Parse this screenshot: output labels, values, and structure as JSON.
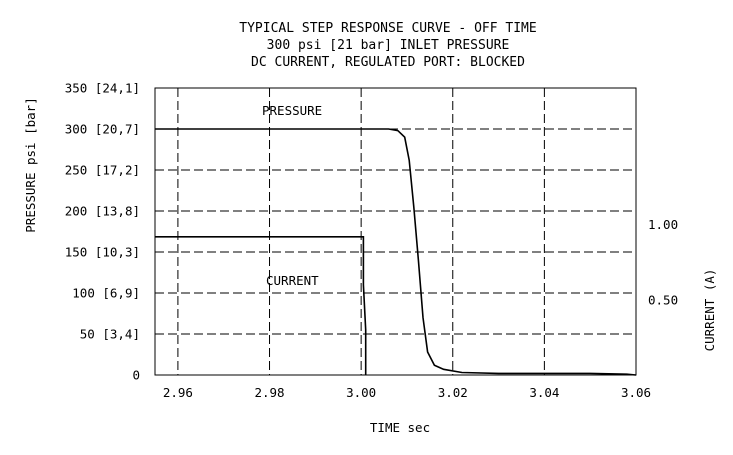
{
  "chart_data": {
    "type": "line",
    "title": [
      "TYPICAL STEP RESPONSE CURVE - OFF TIME",
      "300 psi [21 bar] INLET PRESSURE",
      "DC CURRENT, REGULATED PORT: BLOCKED"
    ],
    "xlabel": "TIME sec",
    "ylabel": "PRESSURE psi [bar]",
    "y2label": "CURRENT (A)",
    "xlim": [
      2.955,
      3.06
    ],
    "ylim": [
      0,
      350
    ],
    "y2lim": [
      0,
      1.91
    ],
    "grid": true,
    "x_ticks": [
      {
        "value": 2.96,
        "label": "2.96"
      },
      {
        "value": 2.98,
        "label": "2.98"
      },
      {
        "value": 3.0,
        "label": "3.00"
      },
      {
        "value": 3.02,
        "label": "3.02"
      },
      {
        "value": 3.04,
        "label": "3.04"
      },
      {
        "value": 3.06,
        "label": "3.06"
      }
    ],
    "y_ticks": [
      {
        "value": 0,
        "label": "0"
      },
      {
        "value": 50,
        "label": "50 [3,4]"
      },
      {
        "value": 100,
        "label": "100 [6,9]"
      },
      {
        "value": 150,
        "label": "150 [10,3]"
      },
      {
        "value": 200,
        "label": "200 [13,8]"
      },
      {
        "value": 250,
        "label": "250 [17,2]"
      },
      {
        "value": 300,
        "label": "300 [20,7]"
      },
      {
        "value": 350,
        "label": "350 [24,1]"
      }
    ],
    "y2_ticks": [
      {
        "value": 1.0,
        "label": "1.00"
      },
      {
        "value": 0.5,
        "label": "0.50"
      }
    ],
    "series": [
      {
        "name": "PRESSURE",
        "axis": "left",
        "x": [
          2.955,
          3.0,
          3.006,
          3.008,
          3.0095,
          3.0105,
          3.0115,
          3.0125,
          3.0135,
          3.0145,
          3.016,
          3.018,
          3.022,
          3.03,
          3.05,
          3.058,
          3.06
        ],
        "y": [
          300,
          300,
          300,
          298,
          290,
          262,
          205,
          140,
          70,
          28,
          12,
          7,
          3,
          2,
          2,
          1,
          0
        ]
      },
      {
        "name": "CURRENT",
        "axis": "right",
        "x": [
          2.955,
          3.0005,
          3.0005,
          3.001,
          3.001
        ],
        "y": [
          0.92,
          0.92,
          0.6,
          0.3,
          0.0
        ]
      }
    ]
  }
}
